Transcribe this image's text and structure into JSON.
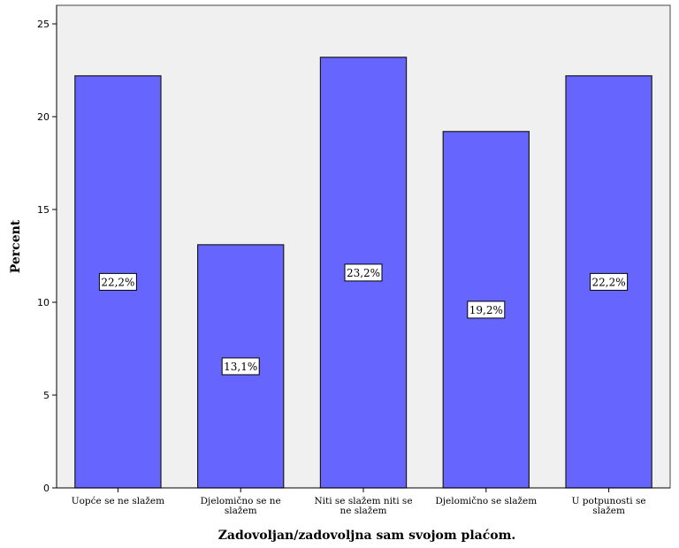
{
  "chart_data": {
    "type": "bar",
    "categories": [
      [
        "Uopće se ne slažem"
      ],
      [
        "Djelomično se ne",
        "slažem"
      ],
      [
        "Niti se slažem niti se",
        "ne slažem"
      ],
      [
        "Djelomično se slažem"
      ],
      [
        "U potpunosti se",
        "slažem"
      ]
    ],
    "values": [
      22.2,
      13.1,
      23.2,
      19.2,
      22.2
    ],
    "data_labels": [
      "22,2%",
      "13,1%",
      "23,2%",
      "19,2%",
      "22,2%"
    ],
    "title": "",
    "xlabel": "Zadovoljan/zadovoljna sam svojom plaćom.",
    "ylabel": "Percent",
    "ylim": [
      0,
      26
    ],
    "yticks": [
      0,
      5,
      10,
      15,
      20,
      25
    ],
    "ytick_labels": [
      "0",
      "5",
      "10",
      "15",
      "20",
      "25"
    ],
    "grid": false,
    "colors": {
      "bar_fill": "#6666ff",
      "bar_stroke": "#1a1a1a",
      "plot_background": "#f0f0f0"
    }
  }
}
